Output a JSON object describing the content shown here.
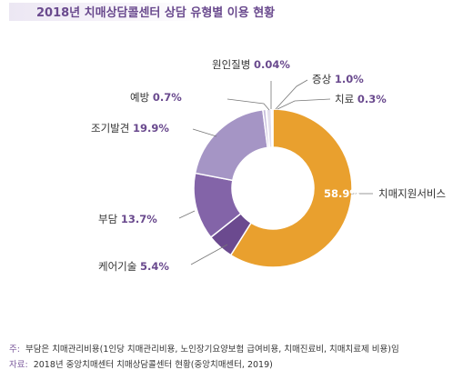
{
  "chart_data": {
    "type": "pie",
    "title": "2018년 치매상담콜센터 상담 유형별 이용 현황",
    "donut": true,
    "categories": [
      "치매지원서비스",
      "케어기술",
      "부담",
      "조기발견",
      "예방",
      "원인질병",
      "증상",
      "치료"
    ],
    "values": [
      58.9,
      5.4,
      13.7,
      19.9,
      0.7,
      0.04,
      1.0,
      0.3
    ],
    "value_labels": [
      "58.9%",
      "5.4%",
      "13.7%",
      "19.9%",
      "0.7%",
      "0.04%",
      "1.0%",
      "0.3%"
    ],
    "colors": [
      "#e9a02e",
      "#6b4a8f",
      "#8364a8",
      "#a595c5",
      "#c6bcdb",
      "#d5cfe3",
      "#e3dfec",
      "#cfc8de"
    ]
  },
  "footer": {
    "note_tag": "주:",
    "note": "부담은 치매관리비용(1인당 치매관리비용, 노인장기요양보험 급여비용, 치매진료비, 치매치료제 비용)임",
    "source_tag": "자료:",
    "source": "2018년 중앙치매센터 치매상담콜센터 현황(중앙치매센터, 2019)"
  }
}
